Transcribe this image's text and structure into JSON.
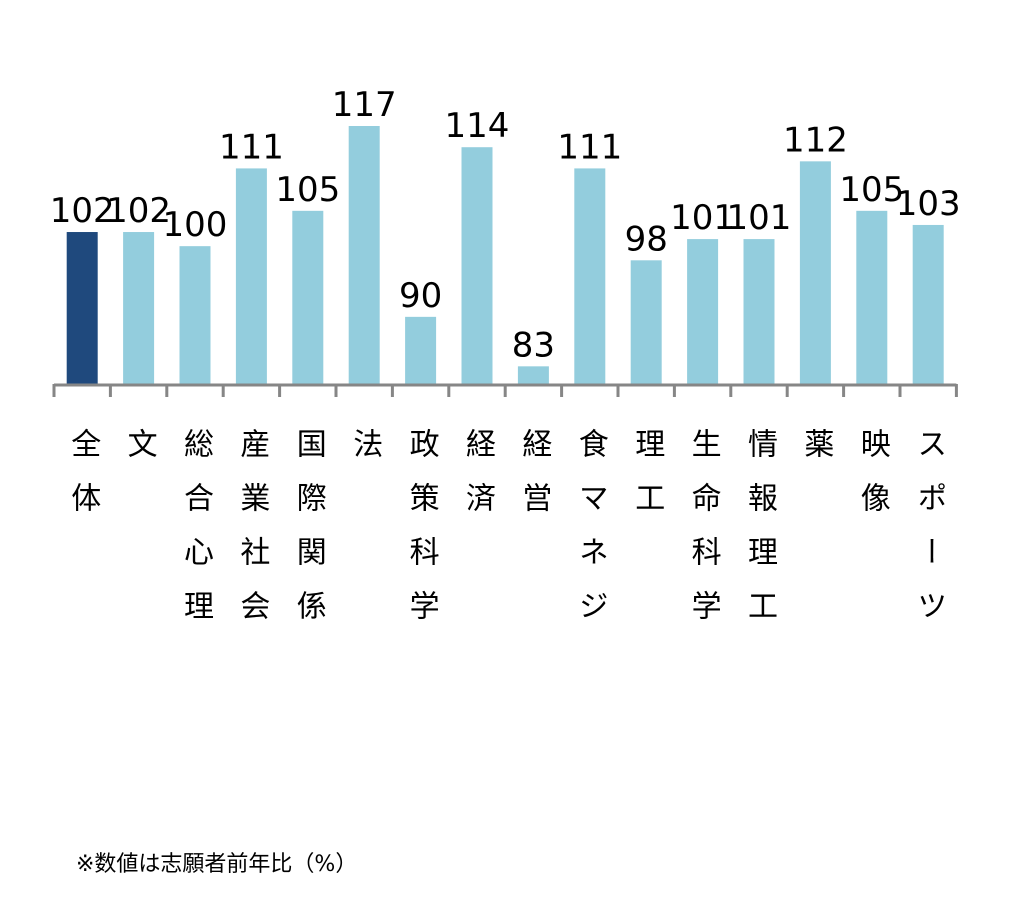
{
  "chart_data": {
    "type": "bar",
    "categories": [
      "全体",
      "文",
      "総合心理",
      "産業社会",
      "国際関係",
      "法",
      "政策科学",
      "経済",
      "経営",
      "食マネジ",
      "理工",
      "生命科学",
      "情報理工",
      "薬",
      "映像",
      "スポーツ"
    ],
    "values": [
      102,
      102,
      100,
      111,
      105,
      117,
      90,
      114,
      83,
      111,
      98,
      101,
      101,
      112,
      105,
      103
    ],
    "data_labels": [
      "102",
      "102",
      "100",
      "111",
      "105",
      "117",
      "90",
      "114",
      "83",
      "111",
      "98",
      "101",
      "101",
      "112",
      "105",
      "103"
    ],
    "colors": {
      "highlight": "#1f497d",
      "default": "#93cddd",
      "axis": "#868686"
    },
    "highlight_index": 0,
    "ylim": [
      80.5,
      120
    ],
    "grid": false,
    "title": "",
    "xlabel": "",
    "ylabel": ""
  },
  "footnote": "※数値は志願者前年比（%）"
}
